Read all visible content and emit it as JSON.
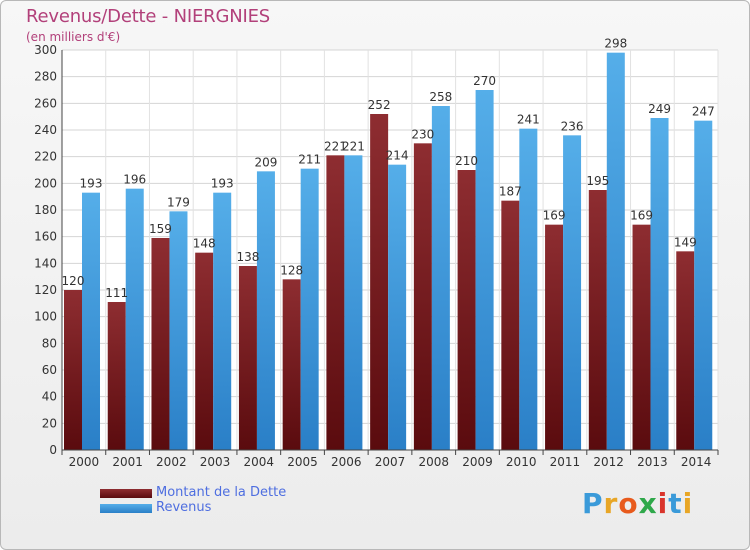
{
  "header": {
    "title": "Revenus/Dette - NIERGNIES",
    "subtitle": "(en milliers d'€)"
  },
  "chart_data": {
    "type": "bar",
    "title": "Revenus/Dette - NIERGNIES",
    "ylabel": "(en milliers d'€)",
    "xlabel": "",
    "ylim": [
      0,
      300
    ],
    "ytick_step": 20,
    "grid": true,
    "categories": [
      "2000",
      "2001",
      "2002",
      "2003",
      "2004",
      "2005",
      "2006",
      "2007",
      "2008",
      "2009",
      "2010",
      "2011",
      "2012",
      "2013",
      "2014"
    ],
    "series": [
      {
        "name": "Montant de la Dette",
        "color": "#7a1e22",
        "values": [
          120,
          111,
          159,
          148,
          138,
          128,
          221,
          252,
          230,
          210,
          187,
          169,
          195,
          169,
          149
        ]
      },
      {
        "name": "Revenus",
        "color": "#3e97e0",
        "values": [
          193,
          196,
          179,
          193,
          209,
          211,
          221,
          214,
          258,
          270,
          241,
          236,
          298,
          249,
          247
        ]
      }
    ]
  },
  "legend": {
    "items": [
      {
        "label": "Montant de la Dette",
        "color": "#7a1e22"
      },
      {
        "label": "Revenus",
        "color": "#3e97e0"
      }
    ]
  },
  "logo": {
    "letters": [
      "P",
      "r",
      "o",
      "x",
      "i",
      "t",
      "i"
    ],
    "colors": [
      "#3a9ad9",
      "#e8a626",
      "#e85a1c",
      "#2fa84a",
      "#d9342b",
      "#3a9ad9",
      "#e8a626"
    ]
  }
}
